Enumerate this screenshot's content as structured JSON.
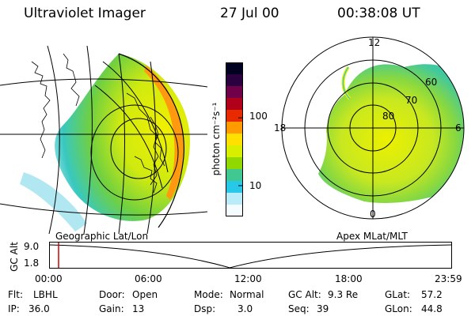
{
  "header": {
    "instrument": "Ultraviolet Imager",
    "date": "27 Jul 00",
    "time": "00:38:08 UT"
  },
  "colorbar": {
    "unit_label": "photon cm⁻²s⁻¹",
    "ticks": [
      "100",
      "10"
    ],
    "colors": [
      "#000020",
      "#2a0040",
      "#70004a",
      "#b0001a",
      "#e82a00",
      "#ff9a00",
      "#ffe000",
      "#d8ef00",
      "#90d800",
      "#40c890",
      "#28c8e8",
      "#b8ecf8",
      "#f4fcff"
    ]
  },
  "left_panel": {
    "caption": "Geographic Lat/Lon"
  },
  "right_panel": {
    "caption": "Apex MLat/MLT",
    "mlt_labels": {
      "top": "12",
      "right": "6",
      "bottom": "0",
      "left": "18"
    },
    "mlat_labels": [
      "60",
      "70",
      "80"
    ]
  },
  "altitude_track": {
    "axis_label": "GC Alt",
    "y_ticks": [
      "9.0",
      "1.8"
    ],
    "x_ticks": [
      "00:00",
      "06:00",
      "12:00",
      "18:00",
      "23:59"
    ],
    "marker_time": "00:38",
    "marker_color": "#cc0000"
  },
  "status": {
    "flt_label": "Flt:",
    "flt_value": "LBHL",
    "ip_label": "IP:",
    "ip_value": "36.0",
    "door_label": "Door:",
    "door_value": "Open",
    "gain_label": "Gain:",
    "gain_value": "13",
    "mode_label": "Mode:",
    "mode_value": "Normal",
    "dsp_label": "Dsp:",
    "dsp_value": "3.0",
    "gcalt_label": "GC Alt:",
    "gcalt_value": "9.3 Re",
    "seq_label": "Seq:",
    "seq_value": "39",
    "glat_label": "GLat:",
    "glat_value": "57.2",
    "glon_label": "GLon:",
    "glon_value": "44.8"
  }
}
